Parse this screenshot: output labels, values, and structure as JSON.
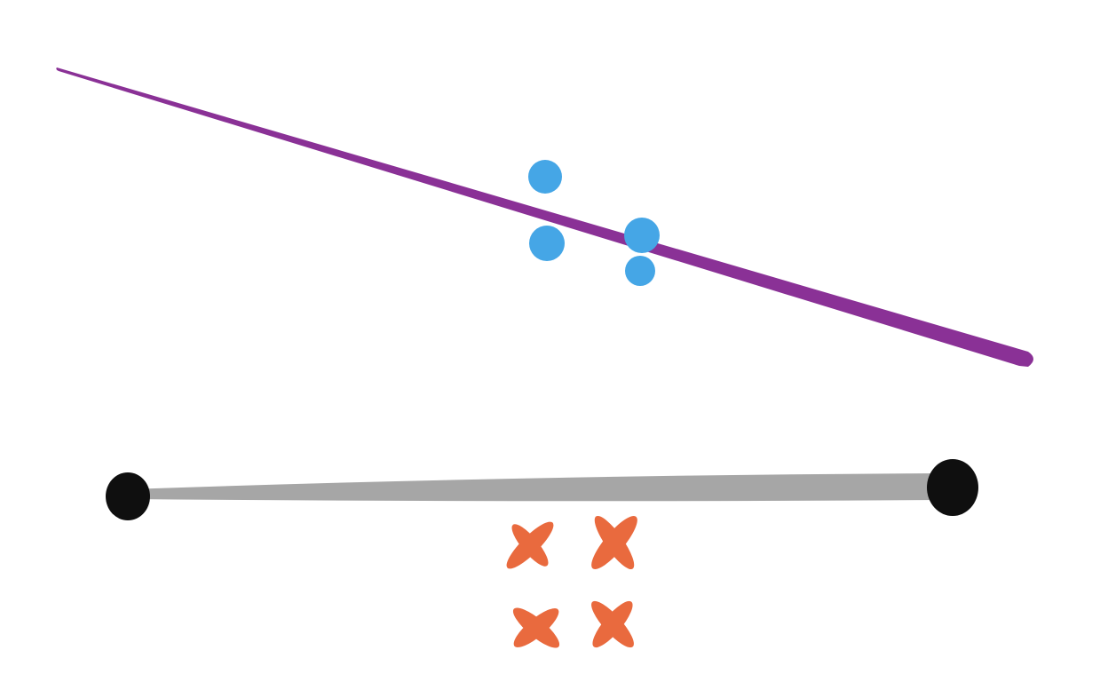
{
  "colors": {
    "background": "#ffffff",
    "purple_line": "#8a3196",
    "blue_dots": "#45a6e6",
    "gray_bar": "#a6a6a6",
    "black_endpoints": "#0f0f0f",
    "orange_crosses": "#e96a3e"
  },
  "elements": {
    "purple_line": "separating-line",
    "blue_dots": "circle-markers",
    "gray_bar": "segment-bar",
    "black_endpoints": "segment-endpoints",
    "orange_crosses": "cross-markers"
  }
}
